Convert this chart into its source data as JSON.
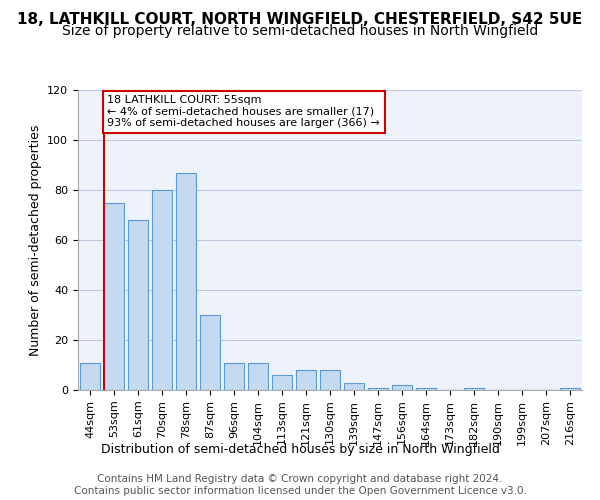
{
  "title1": "18, LATHKILL COURT, NORTH WINGFIELD, CHESTERFIELD, S42 5UE",
  "title2": "Size of property relative to semi-detached houses in North Wingfield",
  "xlabel": "Distribution of semi-detached houses by size in North Wingfield",
  "ylabel": "Number of semi-detached properties",
  "categories": [
    "44sqm",
    "53sqm",
    "61sqm",
    "70sqm",
    "78sqm",
    "87sqm",
    "96sqm",
    "104sqm",
    "113sqm",
    "121sqm",
    "130sqm",
    "139sqm",
    "147sqm",
    "156sqm",
    "164sqm",
    "173sqm",
    "182sqm",
    "190sqm",
    "199sqm",
    "207sqm",
    "216sqm"
  ],
  "values": [
    11,
    75,
    68,
    80,
    87,
    30,
    11,
    11,
    6,
    8,
    8,
    3,
    1,
    2,
    1,
    0,
    1,
    0,
    0,
    0,
    1
  ],
  "bar_color": "#c5d9f1",
  "bar_edge_color": "#5b9bd5",
  "annotation_text": "18 LATHKILL COURT: 55sqm\n← 4% of semi-detached houses are smaller (17)\n93% of semi-detached houses are larger (366) →",
  "annotation_box_color": "#ffffff",
  "annotation_box_edge_color": "#cc0000",
  "vline_color": "#cc0000",
  "vline_x": 0.575,
  "ylim": [
    0,
    120
  ],
  "yticks": [
    0,
    20,
    40,
    60,
    80,
    100,
    120
  ],
  "grid_color": "#c0c8e0",
  "bg_color": "#eef2fb",
  "footer": "Contains HM Land Registry data © Crown copyright and database right 2024.\nContains public sector information licensed under the Open Government Licence v3.0.",
  "title_fontsize": 11,
  "subtitle_fontsize": 10,
  "axis_label_fontsize": 9,
  "tick_fontsize": 8,
  "footer_fontsize": 7.5
}
